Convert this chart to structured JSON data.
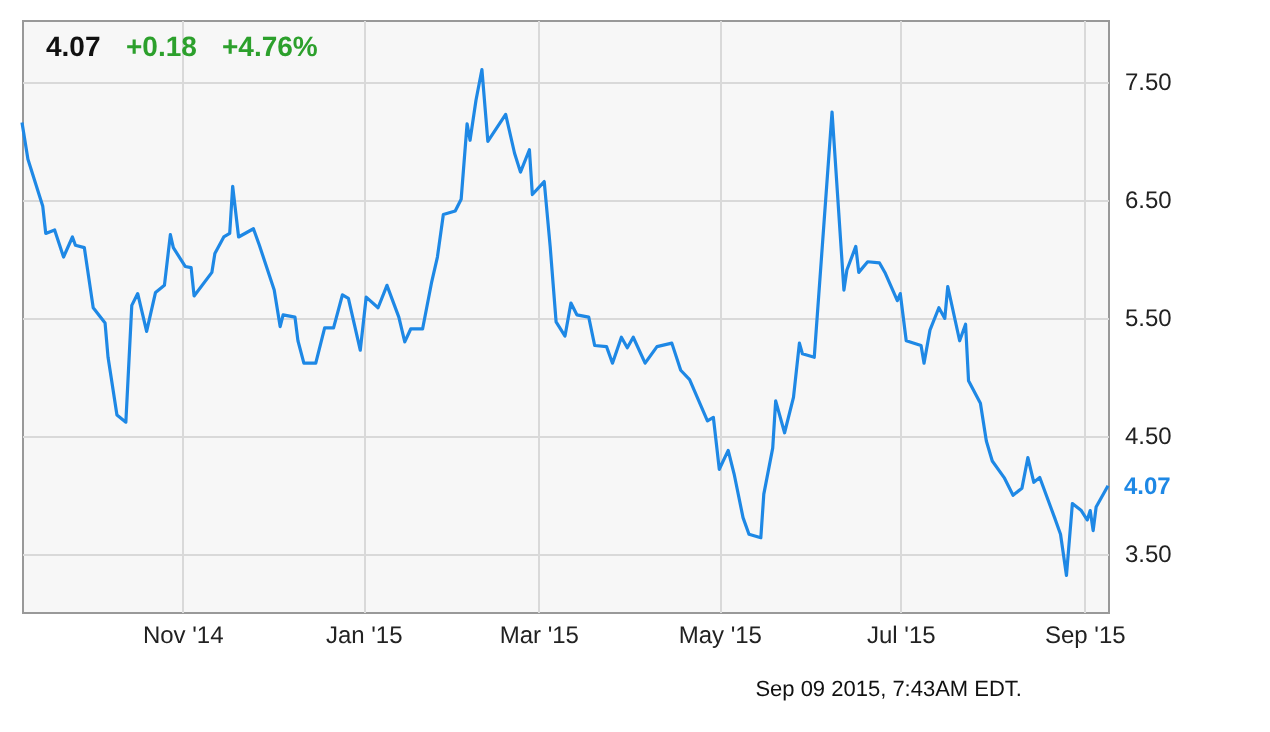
{
  "chart_data": {
    "type": "line",
    "x": [
      "2014-09-08",
      "2014-09-10",
      "2014-09-15",
      "2014-09-16",
      "2014-09-19",
      "2014-09-22",
      "2014-09-25",
      "2014-09-26",
      "2014-09-29",
      "2014-10-02",
      "2014-10-06",
      "2014-10-07",
      "2014-10-10",
      "2014-10-13",
      "2014-10-15",
      "2014-10-17",
      "2014-10-20",
      "2014-10-23",
      "2014-10-26",
      "2014-10-28",
      "2014-10-29",
      "2014-11-02",
      "2014-11-04",
      "2014-11-05",
      "2014-11-11",
      "2014-11-12",
      "2014-11-15",
      "2014-11-17",
      "2014-11-18",
      "2014-11-20",
      "2014-11-25",
      "2014-11-27",
      "2014-12-02",
      "2014-12-04",
      "2014-12-05",
      "2014-12-09",
      "2014-12-10",
      "2014-12-12",
      "2014-12-16",
      "2014-12-19",
      "2014-12-22",
      "2014-12-25",
      "2014-12-27",
      "2014-12-31",
      "2015-01-02",
      "2015-01-06",
      "2015-01-09",
      "2015-01-13",
      "2015-01-15",
      "2015-01-17",
      "2015-01-21",
      "2015-01-24",
      "2015-01-26",
      "2015-01-28",
      "2015-02-01",
      "2015-02-03",
      "2015-02-05",
      "2015-02-06",
      "2015-02-08",
      "2015-02-10",
      "2015-02-12",
      "2015-02-18",
      "2015-02-21",
      "2015-02-23",
      "2015-02-26",
      "2015-02-27",
      "2015-03-03",
      "2015-03-05",
      "2015-03-07",
      "2015-03-10",
      "2015-03-12",
      "2015-03-14",
      "2015-03-18",
      "2015-03-20",
      "2015-03-24",
      "2015-03-26",
      "2015-03-29",
      "2015-03-31",
      "2015-04-02",
      "2015-04-06",
      "2015-04-10",
      "2015-04-15",
      "2015-04-18",
      "2015-04-21",
      "2015-04-27",
      "2015-04-29",
      "2015-05-01",
      "2015-05-04",
      "2015-05-06",
      "2015-05-09",
      "2015-05-11",
      "2015-05-15",
      "2015-05-16",
      "2015-05-19",
      "2015-05-20",
      "2015-05-23",
      "2015-05-26",
      "2015-05-28",
      "2015-05-29",
      "2015-06-02",
      "2015-06-08",
      "2015-06-12",
      "2015-06-13",
      "2015-06-16",
      "2015-06-17",
      "2015-06-20",
      "2015-06-24",
      "2015-06-26",
      "2015-06-30",
      "2015-07-01",
      "2015-07-03",
      "2015-07-08",
      "2015-07-09",
      "2015-07-11",
      "2015-07-14",
      "2015-07-16",
      "2015-07-17",
      "2015-07-21",
      "2015-07-23",
      "2015-07-24",
      "2015-07-28",
      "2015-07-30",
      "2015-08-01",
      "2015-08-05",
      "2015-08-08",
      "2015-08-11",
      "2015-08-13",
      "2015-08-15",
      "2015-08-17",
      "2015-08-22",
      "2015-08-24",
      "2015-08-26",
      "2015-08-28",
      "2015-08-31",
      "2015-09-02",
      "2015-09-03",
      "2015-09-04",
      "2015-09-05",
      "2015-09-09"
    ],
    "series": [
      {
        "color": "#1e88e5",
        "values": [
          7.15,
          6.84,
          6.44,
          6.21,
          6.24,
          6.01,
          6.18,
          6.11,
          6.09,
          5.58,
          5.45,
          5.16,
          4.67,
          4.61,
          5.6,
          5.7,
          5.38,
          5.71,
          5.77,
          6.2,
          6.09,
          5.93,
          5.92,
          5.68,
          5.88,
          6.04,
          6.18,
          6.21,
          6.61,
          6.18,
          6.25,
          6.11,
          5.73,
          5.42,
          5.52,
          5.5,
          5.3,
          5.11,
          5.11,
          5.41,
          5.41,
          5.69,
          5.66,
          5.22,
          5.67,
          5.58,
          5.77,
          5.5,
          5.29,
          5.4,
          5.4,
          5.79,
          6.01,
          6.37,
          6.4,
          6.5,
          7.14,
          7.0,
          7.34,
          7.6,
          6.99,
          7.22,
          6.89,
          6.73,
          6.92,
          6.54,
          6.65,
          6.1,
          5.46,
          5.34,
          5.62,
          5.52,
          5.5,
          5.26,
          5.25,
          5.11,
          5.33,
          5.24,
          5.33,
          5.11,
          5.25,
          5.28,
          5.05,
          4.97,
          4.62,
          4.65,
          4.21,
          4.37,
          4.17,
          3.8,
          3.66,
          3.63,
          4.0,
          4.39,
          4.79,
          4.52,
          4.82,
          5.28,
          5.19,
          5.16,
          7.24,
          5.73,
          5.9,
          6.1,
          5.88,
          5.97,
          5.96,
          5.87,
          5.64,
          5.7,
          5.3,
          5.26,
          5.11,
          5.39,
          5.58,
          5.49,
          5.76,
          5.3,
          5.44,
          4.96,
          4.77,
          4.45,
          4.28,
          4.14,
          3.99,
          4.05,
          4.31,
          4.1,
          4.14,
          3.8,
          3.66,
          3.31,
          3.92,
          3.86,
          3.78,
          3.86,
          3.69,
          3.89,
          4.07
        ]
      }
    ],
    "xlim": [
      "2014-09-08",
      "2015-09-09"
    ],
    "xticks": [
      {
        "value": "2014-11-01",
        "label": "Nov '14"
      },
      {
        "value": "2015-01-01",
        "label": "Jan '15"
      },
      {
        "value": "2015-03-01",
        "label": "Mar '15"
      },
      {
        "value": "2015-05-01",
        "label": "May '15"
      },
      {
        "value": "2015-07-01",
        "label": "Jul '15"
      },
      {
        "value": "2015-09-01",
        "label": "Sep '15"
      }
    ],
    "ylim": [
      3.0,
      8.02
    ],
    "yticks": [
      {
        "value": 3.5,
        "label": "3.50"
      },
      {
        "value": 4.5,
        "label": "4.50"
      },
      {
        "value": 5.5,
        "label": "5.50"
      },
      {
        "value": 6.5,
        "label": "6.50"
      },
      {
        "value": 7.5,
        "label": "7.50"
      }
    ],
    "grid": true,
    "annotations": [
      "4.07",
      "+0.18",
      "+4.76%",
      {
        "text": "4.07",
        "x": "2015-09-09",
        "y": 4.07
      },
      "Sep 09 2015, 7:43AM EDT."
    ]
  }
}
